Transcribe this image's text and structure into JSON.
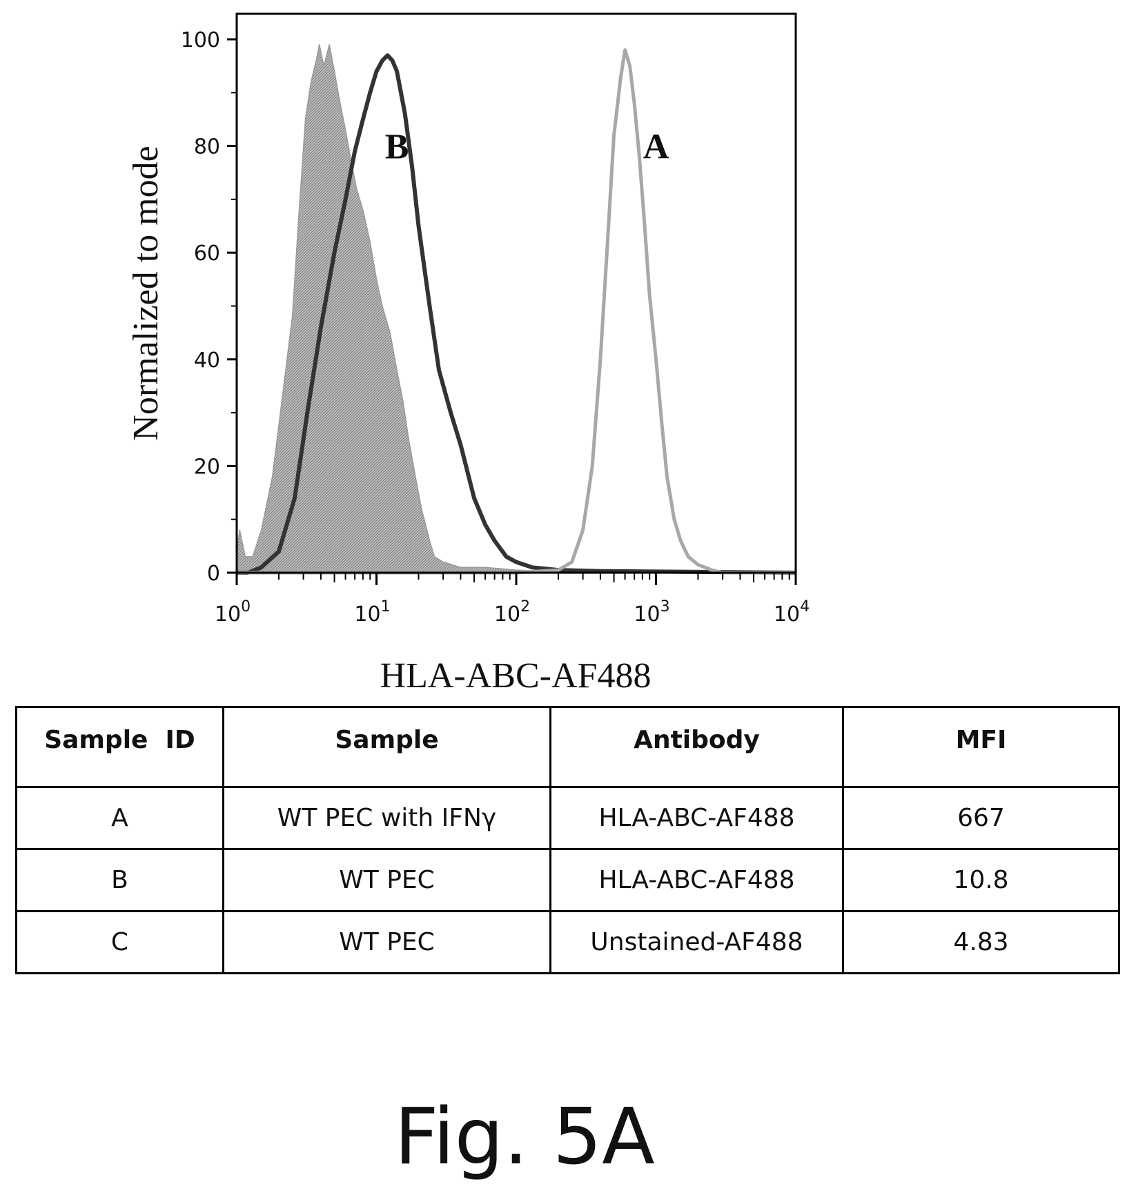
{
  "chart_data": {
    "type": "area",
    "xlabel": "HLA-ABC-AF488",
    "ylabel": "Normalized to mode",
    "xscale": "log",
    "xlim": [
      1,
      10000
    ],
    "ylim": [
      0,
      100
    ],
    "x_ticks": [
      {
        "base": "10",
        "exp": "0",
        "value": 1
      },
      {
        "base": "10",
        "exp": "1",
        "value": 10
      },
      {
        "base": "10",
        "exp": "2",
        "value": 100
      },
      {
        "base": "10",
        "exp": "3",
        "value": 1000
      },
      {
        "base": "10",
        "exp": "4",
        "value": 10000
      }
    ],
    "y_ticks": [
      "0",
      "20",
      "40",
      "60",
      "80",
      "100"
    ],
    "series": [
      {
        "style": "filled-gray",
        "x": [
          1.0,
          1.05,
          1.15,
          1.3,
          1.5,
          1.8,
          2.1,
          2.5,
          2.8,
          3.1,
          3.4,
          3.7,
          3.9,
          4.2,
          4.6,
          5.0,
          5.5,
          6.0,
          6.6,
          7.2,
          8.0,
          9.0,
          10.0,
          11.0,
          12.5,
          14.0,
          15.5,
          17.0,
          19.0,
          21.0,
          24.0,
          26.0,
          30.0,
          40.0,
          60.0,
          100.0,
          150.0,
          200.0,
          300.0
        ],
        "y": [
          4,
          8,
          3,
          3,
          8,
          18,
          32,
          48,
          68,
          85,
          92,
          96,
          99,
          95,
          99,
          94,
          88,
          83,
          77,
          72,
          68,
          62,
          55,
          50,
          45,
          38,
          32,
          25,
          18,
          12,
          6,
          3,
          2,
          1,
          1,
          0.5,
          0.3,
          0.2,
          0
        ]
      },
      {
        "name": "B",
        "style": "thick-dark-outline",
        "x": [
          1.0,
          1.2,
          1.5,
          2.0,
          2.6,
          3.2,
          4.0,
          5.0,
          6.0,
          7.0,
          8.0,
          9.0,
          10.0,
          11.0,
          12.0,
          13.0,
          14.0,
          16.0,
          18.0,
          20.0,
          24.0,
          28.0,
          34.0,
          40.0,
          50.0,
          60.0,
          70.0,
          85.0,
          100.0,
          130.0,
          200.0,
          400.0,
          10000.0
        ],
        "y": [
          0,
          0,
          1,
          4,
          14,
          30,
          46,
          60,
          70,
          79,
          85,
          90,
          94,
          96,
          97,
          96,
          94,
          86,
          76,
          65,
          50,
          38,
          30,
          24,
          14,
          9,
          6,
          3,
          2,
          1,
          0.5,
          0.3,
          0
        ]
      },
      {
        "name": "A",
        "style": "light-gray-outline",
        "x": [
          1.0,
          100.0,
          200.0,
          250.0,
          300.0,
          350.0,
          400.0,
          450.0,
          500.0,
          560.0,
          600.0,
          650.0,
          700.0,
          760.0,
          830.0,
          900.0,
          1000.0,
          1100.0,
          1200.0,
          1350.0,
          1500.0,
          1700.0,
          2000.0,
          2500.0,
          3000.0,
          10000.0
        ],
        "y": [
          0,
          0,
          0.5,
          2,
          8,
          20,
          40,
          62,
          82,
          93,
          98,
          95,
          88,
          78,
          65,
          52,
          40,
          28,
          18,
          10,
          6,
          3,
          1.5,
          0.5,
          0,
          0
        ]
      }
    ],
    "annotations": [
      {
        "text": "B",
        "x": 14,
        "y": 80
      },
      {
        "text": "A",
        "x": 1000,
        "y": 80
      }
    ]
  },
  "table": {
    "headers": [
      "Sample  ID",
      "Sample",
      "Antibody",
      "MFI"
    ],
    "rows": [
      [
        "A",
        "WT PEC with IFNγ",
        "HLA-ABC-AF488",
        "667"
      ],
      [
        "B",
        "WT PEC",
        "HLA-ABC-AF488",
        "10.8"
      ],
      [
        "C",
        "WT PEC",
        "Unstained-AF488",
        "4.83"
      ]
    ]
  },
  "caption": "Fig. 5A"
}
